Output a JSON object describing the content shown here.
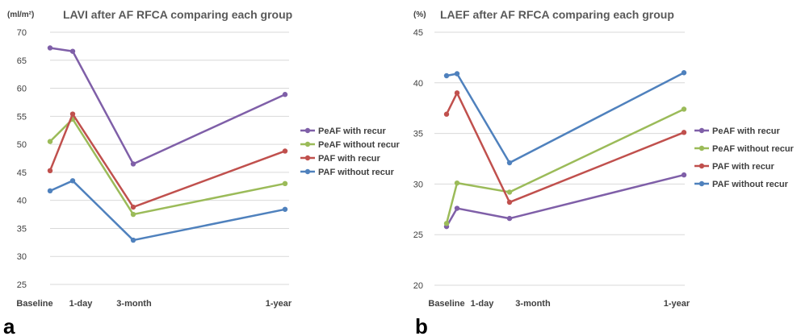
{
  "chart_data": [
    {
      "type": "line",
      "panel_label": "a",
      "title": "LAVI after AF RFCA comparing each group",
      "unit_label": "(ml/m²)",
      "x": [
        "Baseline",
        "1-day",
        "3-month",
        "1-year"
      ],
      "ylim": [
        25,
        70
      ],
      "y_ticks": [
        25,
        30,
        35,
        40,
        45,
        50,
        55,
        60,
        65,
        70
      ],
      "grid": true,
      "legend_position": "right",
      "series": [
        {
          "name": "PeAF with recur",
          "color": "#7f5fa8",
          "values": [
            67.2,
            66.6,
            46.5,
            58.9
          ]
        },
        {
          "name": "PeAF without recur",
          "color": "#9bbb59",
          "values": [
            50.5,
            54.5,
            37.5,
            43.0
          ]
        },
        {
          "name": "PAF with recur",
          "color": "#c0504d",
          "values": [
            45.3,
            55.4,
            38.8,
            48.8
          ]
        },
        {
          "name": "PAF without recur",
          "color": "#4f81bd",
          "values": [
            41.7,
            43.5,
            32.9,
            38.4
          ]
        }
      ]
    },
    {
      "type": "line",
      "panel_label": "b",
      "title": "LAEF after AF RFCA comparing each group",
      "unit_label": "(%)",
      "x": [
        "Baseline",
        "1-day",
        "3-month",
        "1-year"
      ],
      "ylim": [
        20,
        45
      ],
      "y_ticks": [
        20,
        25,
        30,
        35,
        40,
        45
      ],
      "grid": true,
      "legend_position": "right",
      "series": [
        {
          "name": "PeAF with recur",
          "color": "#7f5fa8",
          "values": [
            25.8,
            27.6,
            26.6,
            30.9
          ]
        },
        {
          "name": "PeAF without recur",
          "color": "#9bbb59",
          "values": [
            26.1,
            30.1,
            29.2,
            37.4
          ]
        },
        {
          "name": "PAF with recur",
          "color": "#c0504d",
          "values": [
            36.9,
            39.0,
            28.2,
            35.1
          ]
        },
        {
          "name": "PAF without recur",
          "color": "#4f81bd",
          "values": [
            40.7,
            40.9,
            32.1,
            41.0
          ]
        }
      ]
    }
  ]
}
